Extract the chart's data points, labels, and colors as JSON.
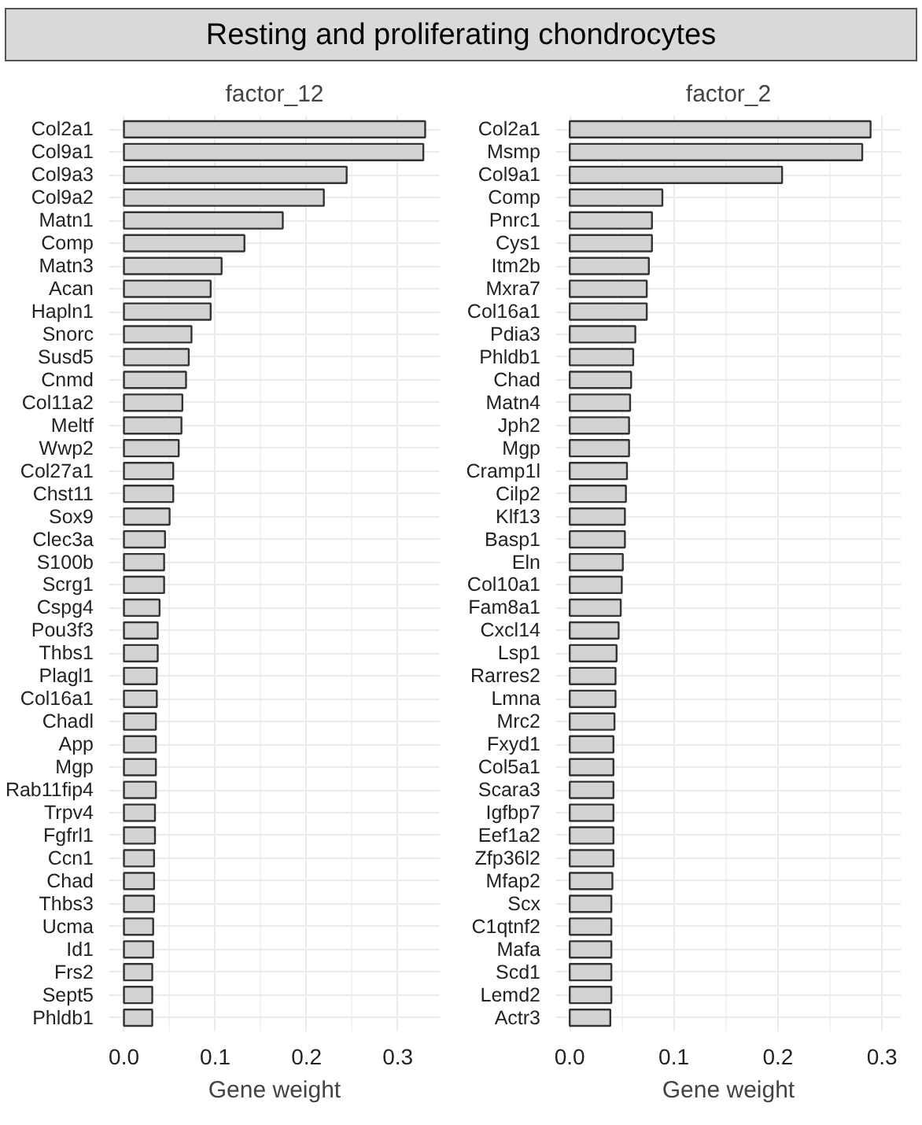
{
  "chart_data": [
    {
      "type": "bar",
      "orientation": "horizontal",
      "title": "Resting and proliferating chondrocytes",
      "subtitle": "factor_12",
      "xlabel": "Gene weight",
      "grid": true,
      "color": "#d3d3d3",
      "categories": [
        "Col2a1",
        "Col9a1",
        "Col9a3",
        "Col9a2",
        "Matn1",
        "Comp",
        "Matn3",
        "Acan",
        "Hapln1",
        "Snorc",
        "Susd5",
        "Cnmd",
        "Col11a2",
        "Meltf",
        "Wwp2",
        "Col27a1",
        "Chst11",
        "Sox9",
        "Clec3a",
        "S100b",
        "Scrg1",
        "Cspg4",
        "Pou3f3",
        "Thbs1",
        "Plagl1",
        "Col16a1",
        "Chadl",
        "App",
        "Mgp",
        "Rab11fip4",
        "Trpv4",
        "Fgfrl1",
        "Ccn1",
        "Chad",
        "Thbs3",
        "Ucma",
        "Id1",
        "Frs2",
        "Sept5",
        "Phldb1"
      ],
      "values": [
        0.33,
        0.328,
        0.244,
        0.219,
        0.174,
        0.132,
        0.107,
        0.095,
        0.095,
        0.074,
        0.071,
        0.068,
        0.064,
        0.063,
        0.06,
        0.054,
        0.054,
        0.05,
        0.045,
        0.044,
        0.044,
        0.039,
        0.037,
        0.037,
        0.036,
        0.036,
        0.035,
        0.035,
        0.035,
        0.035,
        0.034,
        0.034,
        0.033,
        0.033,
        0.033,
        0.032,
        0.032,
        0.031,
        0.031,
        0.031
      ],
      "xlim": [
        -0.016,
        0.346
      ],
      "xticks": [
        {
          "value": 0,
          "label": "0.0"
        },
        {
          "value": 0.05,
          "label": null
        },
        0.1,
        {
          "value": 0.15,
          "label": null
        },
        0.2,
        {
          "value": 0.25,
          "label": null
        },
        0.3
      ]
    },
    {
      "type": "bar",
      "orientation": "horizontal",
      "title": "factor_2",
      "xlabel": "Gene weight",
      "grid": true,
      "color": "#d3d3d3",
      "categories": [
        "Col2a1",
        "Msmp",
        "Col9a1",
        "Comp",
        "Pnrc1",
        "Cys1",
        "Itm2b",
        "Mxra7",
        "Col16a1",
        "Pdia3",
        "Phldb1",
        "Chad",
        "Matn4",
        "Jph2",
        "Mgp",
        "Cramp1l",
        "Cilp2",
        "Klf13",
        "Basp1",
        "Eln",
        "Col10a1",
        "Fam8a1",
        "Cxcl14",
        "Lsp1",
        "Rarres2",
        "Lmna",
        "Mrc2",
        "Fxyd1",
        "Col5a1",
        "Scara3",
        "Igfbp7",
        "Eef1a2",
        "Zfp36l2",
        "Mfap2",
        "Scx",
        "C1qtnf2",
        "Mafa",
        "Scd1",
        "Lemd2",
        "Actr3"
      ],
      "values": [
        0.289,
        0.281,
        0.204,
        0.089,
        0.079,
        0.079,
        0.076,
        0.074,
        0.074,
        0.063,
        0.061,
        0.059,
        0.058,
        0.057,
        0.057,
        0.055,
        0.054,
        0.053,
        0.053,
        0.051,
        0.05,
        0.049,
        0.047,
        0.045,
        0.044,
        0.044,
        0.043,
        0.042,
        0.042,
        0.042,
        0.042,
        0.042,
        0.042,
        0.041,
        0.04,
        0.04,
        0.04,
        0.04,
        0.04,
        0.039
      ],
      "xlim": [
        -0.013,
        0.318
      ],
      "xticks": [
        {
          "value": 0,
          "label": "0.0"
        },
        {
          "value": 0.05,
          "label": null
        },
        0.1,
        {
          "value": 0.15,
          "label": null
        },
        0.2,
        {
          "value": 0.25,
          "label": null
        },
        0.3
      ]
    }
  ]
}
